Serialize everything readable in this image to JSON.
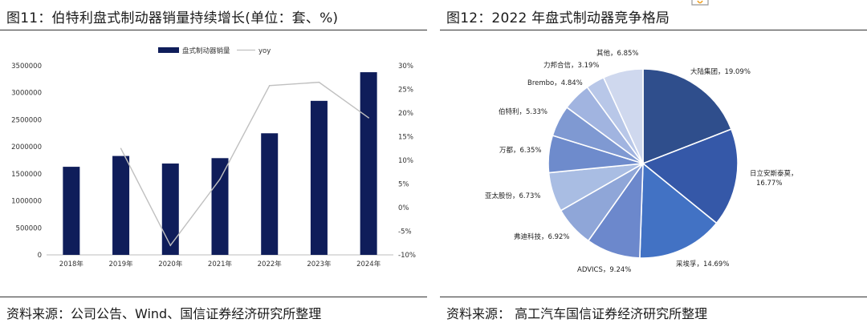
{
  "left": {
    "title": "图11：伯特利盘式制动器销量持续增长(单位：套、%)",
    "source": "资料来源：公司公告、Wind、国信证券经济研究所整理"
  },
  "right": {
    "title": "图12：2022 年盘式制动器竞争格局",
    "source": "资料来源：  高工汽车国信证券经济研究所整理"
  },
  "colors": {
    "bar": "#0f1d5a",
    "line": "#c0c0c0",
    "rule": "#333333",
    "logo": "#f0a020"
  },
  "chart_data": [
    {
      "type": "bar",
      "title": "",
      "categories": [
        "2018年",
        "2019年",
        "2020年",
        "2021年",
        "2022年",
        "2023年",
        "2024年"
      ],
      "series": [
        {
          "name": "盘式制动器销量",
          "type": "bar",
          "axis": "left",
          "values": [
            1630000,
            1830000,
            1690000,
            1790000,
            2250000,
            2850000,
            3380000
          ]
        },
        {
          "name": "yoy",
          "type": "line",
          "axis": "right",
          "values": [
            null,
            12.5,
            -8.0,
            6.0,
            25.8,
            26.5,
            19.0
          ]
        }
      ],
      "ylim": [
        0,
        3500000
      ],
      "yticks": [
        "0",
        "500000",
        "1000000",
        "1500000",
        "2000000",
        "2500000",
        "3000000",
        "3500000"
      ],
      "y2lim": [
        -10,
        30
      ],
      "y2ticks": [
        "-10%",
        "-5%",
        "0%",
        "5%",
        "10%",
        "15%",
        "20%",
        "25%",
        "30%"
      ],
      "legend": "top-center",
      "grid": false
    },
    {
      "type": "pie",
      "title": "",
      "slices": [
        {
          "label": "大陆集团，19.09%",
          "value": 19.09,
          "color": "#2f4e8c"
        },
        {
          "label": "日立安斯泰莫，16.77%",
          "value": 16.77,
          "color": "#3558a8"
        },
        {
          "label": "采埃孚，14.69%",
          "value": 14.69,
          "color": "#4272c4"
        },
        {
          "label": "ADVICS，9.24%",
          "value": 9.24,
          "color": "#6c88cc"
        },
        {
          "label": "弗迪科技，6.92%",
          "value": 6.92,
          "color": "#8fa6d8"
        },
        {
          "label": "亚太股份，6.73%",
          "value": 6.73,
          "color": "#a9bde3"
        },
        {
          "label": "万都，6.35%",
          "value": 6.35,
          "color": "#6e8bcc"
        },
        {
          "label": "伯特利，5.33%",
          "value": 5.33,
          "color": "#7f99d2"
        },
        {
          "label": "Brembo，4.84%",
          "value": 4.84,
          "color": "#a1b4e0"
        },
        {
          "label": "力邦合信，3.19%",
          "value": 3.19,
          "color": "#b8c7e8"
        },
        {
          "label": "其他，6.85%",
          "value": 6.85,
          "color": "#cfd8ee"
        }
      ]
    }
  ]
}
